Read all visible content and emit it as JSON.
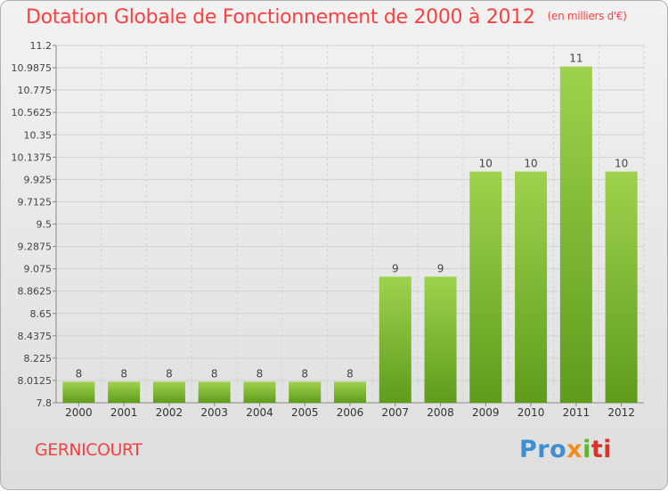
{
  "title": "Dotation Globale de Fonctionnement de 2000 à 2012",
  "subtitle": "(en milliers d'€)",
  "commune": "GERNICOURT",
  "logo": {
    "p1": "Pro",
    "p2": "x",
    "p3": "i",
    "p4": "ti"
  },
  "colors": {
    "title": "#ff4040",
    "bar_top": "#9ed24e",
    "bar_bottom": "#5f9c1c"
  },
  "chart_data": {
    "type": "bar",
    "categories": [
      "2000",
      "2001",
      "2002",
      "2003",
      "2004",
      "2005",
      "2006",
      "2007",
      "2008",
      "2009",
      "2010",
      "2011",
      "2012"
    ],
    "values": [
      8,
      8,
      8,
      8,
      8,
      8,
      8,
      9,
      9,
      10,
      10,
      11,
      10
    ],
    "value_labels": [
      "8",
      "8",
      "8",
      "8",
      "8",
      "8",
      "8",
      "9",
      "9",
      "10",
      "10",
      "11",
      "10"
    ],
    "ylim": [
      7.8,
      11.2
    ],
    "yticks": [
      7.8,
      8.0125,
      8.225,
      8.4375,
      8.65,
      8.8625,
      9.075,
      9.2875,
      9.5,
      9.7125,
      9.925,
      10.1375,
      10.35,
      10.5625,
      10.775,
      10.9875,
      11.2
    ],
    "grid": true,
    "xlabel": "",
    "ylabel": ""
  }
}
